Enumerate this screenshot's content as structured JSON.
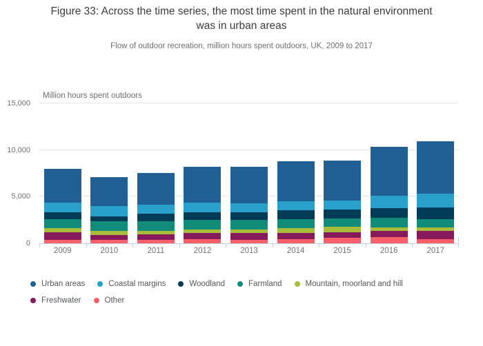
{
  "header": {
    "title": "Figure 33: Across the time series, the most time spent in the natural environment was in urban areas",
    "subtitle": "Flow of outdoor recreation, million hours spent outdoors, UK, 2009 to 2017"
  },
  "chart_data": {
    "type": "bar",
    "stacked": true,
    "title": "Figure 33: Across the time series, the most time spent in the natural environment was in urban areas",
    "subtitle": "Flow of outdoor recreation, million hours spent outdoors, UK, 2009 to 2017",
    "xlabel": "",
    "ylabel": "Million hours spent outdoors",
    "ylim": [
      0,
      15000
    ],
    "yticks": [
      0,
      5000,
      10000,
      15000
    ],
    "ytick_labels": [
      "0",
      "5,000",
      "10,000",
      "15,000"
    ],
    "grid": "horizontal",
    "legend_position": "bottom",
    "categories": [
      "2009",
      "2010",
      "2011",
      "2012",
      "2013",
      "2014",
      "2015",
      "2016",
      "2017"
    ],
    "stack_order_bottom_to_top": [
      "Other",
      "Freshwater",
      "Mountain, moorland and hill",
      "Farmland",
      "Woodland",
      "Coastal margins",
      "Urban areas"
    ],
    "series": [
      {
        "name": "Urban areas",
        "color": "#206095",
        "values": [
          3600,
          3100,
          3400,
          3840,
          3920,
          4280,
          4330,
          5280,
          5600
        ]
      },
      {
        "name": "Coastal margins",
        "color": "#27a0cc",
        "values": [
          1050,
          1150,
          950,
          970,
          950,
          1000,
          940,
          1320,
          1540
        ]
      },
      {
        "name": "Woodland",
        "color": "#003c57",
        "values": [
          700,
          500,
          800,
          840,
          840,
          940,
          950,
          1010,
          1190
        ]
      },
      {
        "name": "Farmland",
        "color": "#118c7b",
        "values": [
          950,
          1000,
          1050,
          1020,
          1050,
          950,
          900,
          1050,
          900
        ]
      },
      {
        "name": "Mountain, moorland and hill",
        "color": "#a8bd3a",
        "values": [
          500,
          450,
          400,
          420,
          330,
          500,
          570,
          370,
          370
        ]
      },
      {
        "name": "Freshwater",
        "color": "#871a5b",
        "values": [
          750,
          500,
          600,
          600,
          720,
          670,
          570,
          670,
          900
        ]
      },
      {
        "name": "Other",
        "color": "#f66068",
        "values": [
          400,
          400,
          350,
          480,
          400,
          450,
          630,
          650,
          450
        ]
      }
    ],
    "totals": [
      7950,
      7100,
      7550,
      8170,
      8210,
      8790,
      8890,
      10350,
      10950
    ],
    "legend_rows": [
      [
        "Urban areas",
        "Coastal margins",
        "Woodland",
        "Farmland",
        "Mountain, moorland and hill"
      ],
      [
        "Freshwater",
        "Other"
      ]
    ]
  },
  "colors": {
    "gridline": "#e4e4e6",
    "axis_line": "#c4cde4",
    "title_text": "#3c3b3d",
    "muted_text": "#6e6f72",
    "legend_text": "#55565a",
    "background": "#ffffff"
  }
}
